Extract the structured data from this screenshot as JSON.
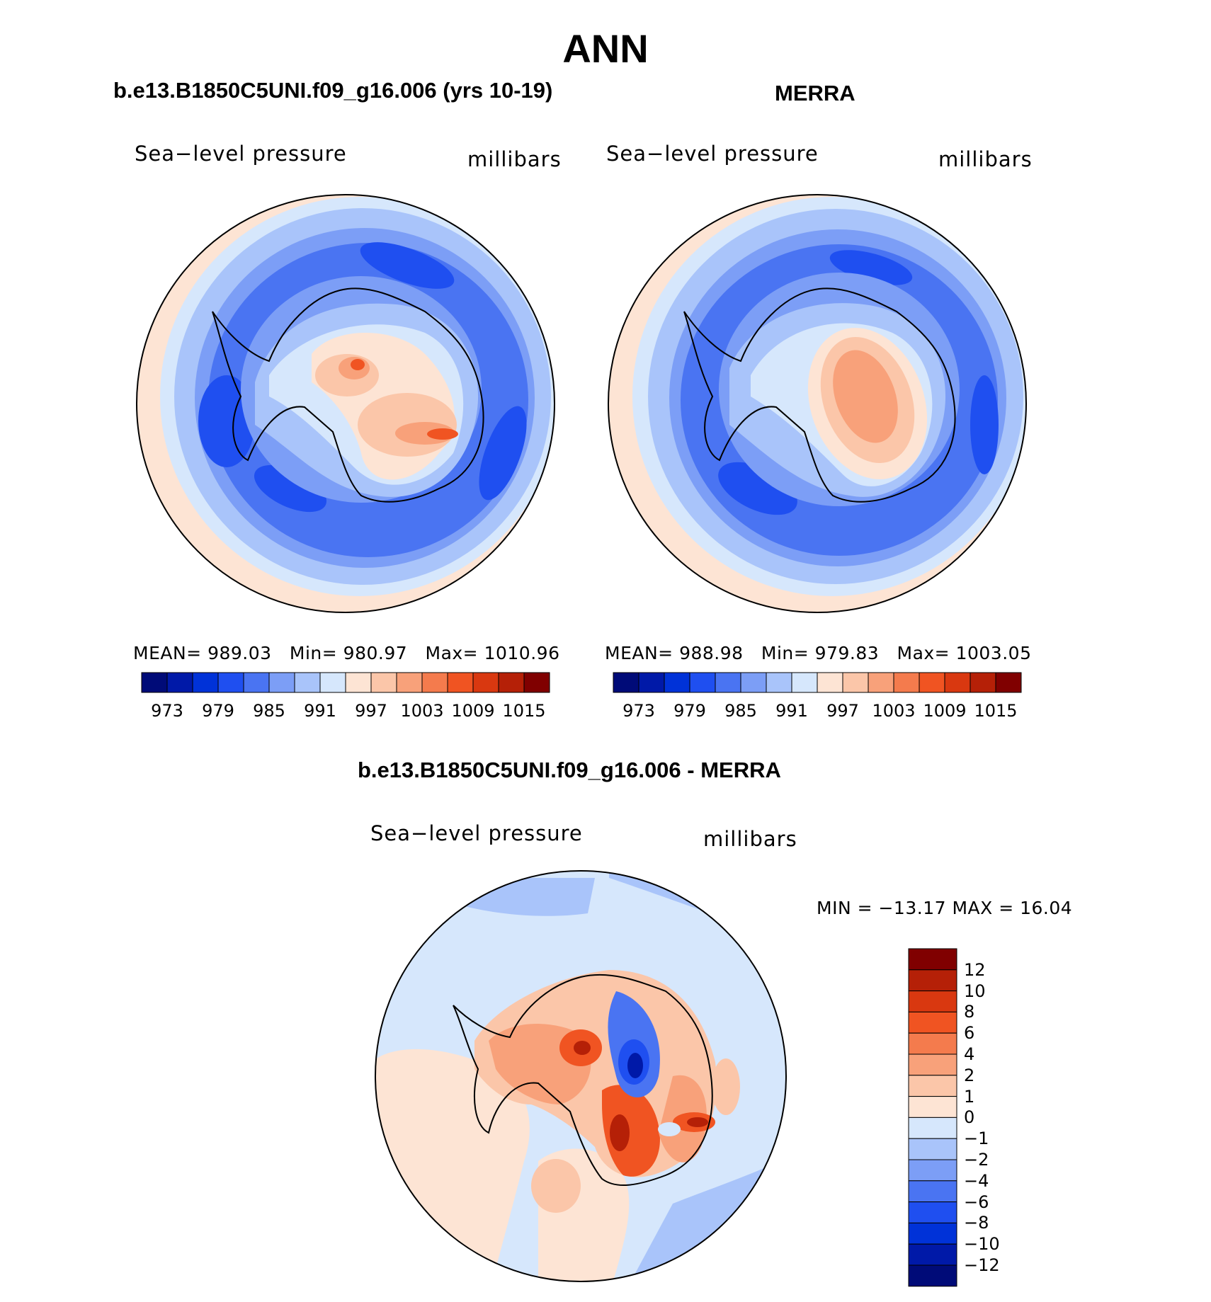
{
  "figure": {
    "title": "ANN",
    "panels": [
      {
        "id": "model",
        "title": "b.e13.B1850C5UNI.f09_g16.006 (yrs 10-19)",
        "variable": "Sea−level pressure",
        "units": "millibars",
        "stats": {
          "mean_label": "MEAN=",
          "mean": "989.03",
          "min_label": "Min=",
          "min": "980.97",
          "max_label": "Max=",
          "max": "1010.96"
        }
      },
      {
        "id": "obs",
        "title": "MERRA",
        "variable": "Sea−level pressure",
        "units": "millibars",
        "stats": {
          "mean_label": "MEAN=",
          "mean": "988.98",
          "min_label": "Min=",
          "min": "979.83",
          "max_label": "Max=",
          "max": "1003.05"
        }
      },
      {
        "id": "diff",
        "title": "b.e13.B1850C5UNI.f09_g16.006 - MERRA",
        "variable": "Sea−level pressure",
        "units": "millibars",
        "stats_text": "MIN = −13.17  MAX =   16.04"
      }
    ],
    "colorbar_abs": {
      "colors": [
        "#000b78",
        "#0019a8",
        "#0032d8",
        "#1f4ff0",
        "#4a74f2",
        "#7c9ef6",
        "#a9c4fa",
        "#d6e7fc",
        "#fde4d4",
        "#fbc6a9",
        "#f8a17a",
        "#f47b4d",
        "#f05422",
        "#d93810",
        "#b52007",
        "#800000"
      ],
      "tick_labels": [
        "973",
        "979",
        "985",
        "991",
        "997",
        "1003",
        "1009",
        "1015"
      ]
    },
    "colorbar_diff": {
      "colors": [
        "#800000",
        "#b52007",
        "#d93810",
        "#f05422",
        "#f47b4d",
        "#f8a17a",
        "#fbc6a9",
        "#fde4d4",
        "#d6e7fc",
        "#a9c4fa",
        "#7c9ef6",
        "#4a74f2",
        "#1f4ff0",
        "#0032d8",
        "#0019a8",
        "#000b78"
      ],
      "tick_labels": [
        "12",
        "10",
        "8",
        "6",
        "4",
        "2",
        "1",
        "0",
        "−1",
        "−2",
        "−4",
        "−6",
        "−8",
        "−10",
        "−12"
      ]
    },
    "palette": {
      "ocean_low": "#4a74f2",
      "ocean_mid": "#7c9ef6",
      "ocean_light": "#a9c4fa",
      "pale_blue": "#d6e7fc",
      "pale_red": "#fde4d4",
      "red_light": "#fbc6a9",
      "red_mid": "#f8a17a",
      "red_strong": "#f05422",
      "red_dark": "#b52007",
      "blue_dark": "#1f4ff0",
      "blue_darker": "#0019a8"
    }
  }
}
